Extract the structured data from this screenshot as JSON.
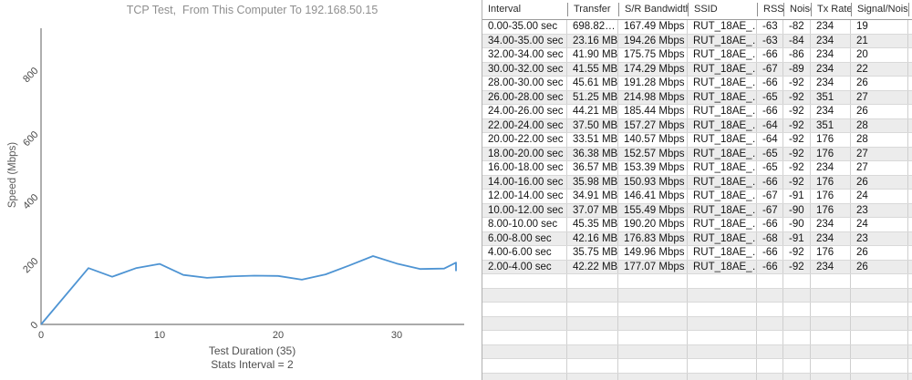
{
  "chart_data": {
    "type": "line",
    "title": "TCP Test,  From This Computer To 192.168.50.15",
    "xlabel": "Test Duration (35)",
    "xlabel2": "Stats Interval = 2",
    "ylabel": "Speed (Mbps)",
    "xticks": [
      0,
      10,
      20,
      30
    ],
    "yticks": [
      0,
      200,
      400,
      600,
      800
    ],
    "xlim": [
      0,
      36
    ],
    "ylim": [
      0,
      930
    ],
    "grid": false,
    "legend": "none",
    "x": [
      0,
      4,
      6,
      8,
      10,
      12,
      14,
      16,
      18,
      20,
      22,
      24,
      26,
      28,
      30,
      32,
      34,
      35
    ],
    "y": [
      0,
      177.07,
      149.96,
      176.83,
      190.2,
      155.49,
      146.41,
      150.93,
      153.39,
      152.57,
      140.57,
      157.27,
      185.44,
      214.98,
      191.28,
      174.29,
      175.75,
      194.26
    ],
    "overall_average": {
      "x": 35,
      "value": 167.49
    }
  },
  "colors": {
    "line": "#4e94d3",
    "axis": "#787878",
    "stripe": "#ececec",
    "title_text": "#8f8f8f"
  },
  "table": {
    "columns": [
      "Interval",
      "Transfer",
      "S/R Bandwidth",
      "SSID",
      "RSSI",
      "Noise",
      "Tx Rate",
      "Signal/Noise"
    ],
    "rows": [
      [
        "0.00-35.00 sec",
        "698.82…",
        "167.49 Mbps",
        "RUT_18AE_…",
        "-63",
        "-82",
        "234",
        "19"
      ],
      [
        "34.00-35.00 sec",
        "23.16 MB",
        "194.26 Mbps",
        "RUT_18AE_…",
        "-63",
        "-84",
        "234",
        "21"
      ],
      [
        "32.00-34.00 sec",
        "41.90 MB",
        "175.75 Mbps",
        "RUT_18AE_…",
        "-66",
        "-86",
        "234",
        "20"
      ],
      [
        "30.00-32.00 sec",
        "41.55 MB",
        "174.29 Mbps",
        "RUT_18AE_…",
        "-67",
        "-89",
        "234",
        "22"
      ],
      [
        "28.00-30.00 sec",
        "45.61 MB",
        "191.28 Mbps",
        "RUT_18AE_…",
        "-66",
        "-92",
        "234",
        "26"
      ],
      [
        "26.00-28.00 sec",
        "51.25 MB",
        "214.98 Mbps",
        "RUT_18AE_…",
        "-65",
        "-92",
        "351",
        "27"
      ],
      [
        "24.00-26.00 sec",
        "44.21 MB",
        "185.44 Mbps",
        "RUT_18AE_…",
        "-66",
        "-92",
        "234",
        "26"
      ],
      [
        "22.00-24.00 sec",
        "37.50 MB",
        "157.27 Mbps",
        "RUT_18AE_…",
        "-64",
        "-92",
        "351",
        "28"
      ],
      [
        "20.00-22.00 sec",
        "33.51 MB",
        "140.57 Mbps",
        "RUT_18AE_…",
        "-64",
        "-92",
        "176",
        "28"
      ],
      [
        "18.00-20.00 sec",
        "36.38 MB",
        "152.57 Mbps",
        "RUT_18AE_…",
        "-65",
        "-92",
        "176",
        "27"
      ],
      [
        "16.00-18.00 sec",
        "36.57 MB",
        "153.39 Mbps",
        "RUT_18AE_…",
        "-65",
        "-92",
        "234",
        "27"
      ],
      [
        "14.00-16.00 sec",
        "35.98 MB",
        "150.93 Mbps",
        "RUT_18AE_…",
        "-66",
        "-92",
        "176",
        "26"
      ],
      [
        "12.00-14.00 sec",
        "34.91 MB",
        "146.41 Mbps",
        "RUT_18AE_…",
        "-67",
        "-91",
        "176",
        "24"
      ],
      [
        "10.00-12.00 sec",
        "37.07 MB",
        "155.49 Mbps",
        "RUT_18AE_…",
        "-67",
        "-90",
        "176",
        "23"
      ],
      [
        "8.00-10.00 sec",
        "45.35 MB",
        "190.20 Mbps",
        "RUT_18AE_…",
        "-66",
        "-90",
        "234",
        "24"
      ],
      [
        "6.00-8.00 sec",
        "42.16 MB",
        "176.83 Mbps",
        "RUT_18AE_…",
        "-68",
        "-91",
        "234",
        "23"
      ],
      [
        "4.00-6.00 sec",
        "35.75 MB",
        "149.96 Mbps",
        "RUT_18AE_…",
        "-66",
        "-92",
        "176",
        "26"
      ],
      [
        "2.00-4.00 sec",
        "42.22 MB",
        "177.07 Mbps",
        "RUT_18AE_…",
        "-66",
        "-92",
        "234",
        "26"
      ]
    ],
    "empty_row_count": 8
  }
}
